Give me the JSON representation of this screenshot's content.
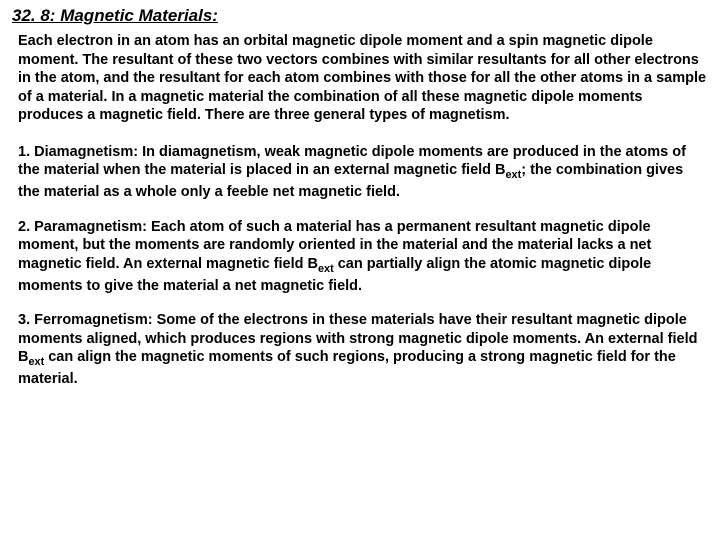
{
  "heading": "32. 8: Magnetic Materials:",
  "intro": "Each electron in an atom has an orbital magnetic dipole moment and a spin magnetic dipole moment. The resultant of these two vectors combines with similar resultants for all other electrons in the atom, and the resultant for each atom combines with those for all the other atoms in a sample of a material. In a magnetic material the combination of all these magnetic dipole moments produces a magnetic field. There are three general types of magnetism.",
  "dia_a": "1. Diamagnetism: In diamagnetism, weak magnetic dipole moments are produced in the atoms of the material when the material is placed in an external magnetic field B",
  "dia_sub": "ext",
  "dia_b": "; the combination gives the material as a whole only a feeble net magnetic field.",
  "para_a": "2. Paramagnetism: Each atom of such a material has a permanent resultant magnetic dipole moment, but the moments are randomly oriented in the material and the material lacks a net magnetic field. An external magnetic field B",
  "para_sub": "ext",
  "para_b": " can partially align the atomic magnetic dipole moments to give the material a net magnetic field.",
  "ferro_a": "3. Ferromagnetism: Some of the electrons in these materials have their resultant magnetic dipole moments aligned, which produces regions with strong magnetic dipole moments. An external field B",
  "ferro_sub": "ext",
  "ferro_b": " can align the magnetic moments of such regions, producing a strong magnetic field for the material."
}
